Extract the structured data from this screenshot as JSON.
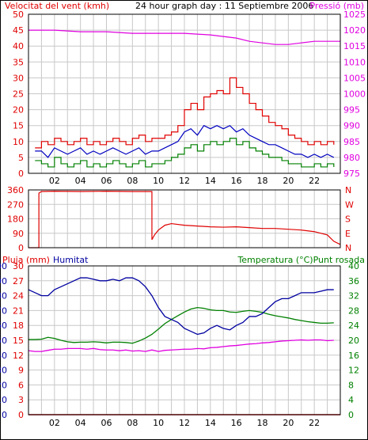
{
  "header": {
    "left_title": "Velocitat del vent (kmh)",
    "center_title": "24 hour graph day : 11 Septiembre 2006",
    "right_title": "Pressió (mb)"
  },
  "colors": {
    "wind": "#e00000",
    "gust_green": "#008000",
    "wind_avg_blue": "#0000c0",
    "pressure": "#e000e0",
    "direction": "#e00000",
    "rain": "#e00000",
    "humidity": "#0000a0",
    "temperature": "#008000",
    "dewpoint": "#e000e0",
    "grid": "#c8c8c8",
    "frame": "#000000"
  },
  "x_axis": {
    "tick_labels": [
      "02",
      "04",
      "06",
      "08",
      "10",
      "12",
      "14",
      "16",
      "18",
      "20",
      "22"
    ],
    "hours": [
      2,
      4,
      6,
      8,
      10,
      12,
      14,
      16,
      18,
      20,
      22
    ],
    "range": [
      0,
      24
    ]
  },
  "chart_data": [
    {
      "type": "line",
      "title": "24 hour graph day : 11 Septiembre 2006",
      "left_axis": {
        "label": "Velocitat del vent (kmh)",
        "ticks": [
          0,
          5,
          10,
          15,
          20,
          25,
          30,
          35,
          40,
          45,
          50
        ],
        "range": [
          0,
          50
        ]
      },
      "right_axis": {
        "label": "Pressió (mb)",
        "ticks": [
          975,
          980,
          985,
          990,
          995,
          1000,
          1005,
          1010,
          1015,
          1020,
          1025
        ],
        "range": [
          975,
          1025
        ]
      },
      "series": [
        {
          "name": "Velocitat del vent (kmh)",
          "axis": "left",
          "x": [
            0.5,
            1,
            1.5,
            2,
            2.5,
            3,
            3.5,
            4,
            4.5,
            5,
            5.5,
            6,
            6.5,
            7,
            7.5,
            8,
            8.5,
            9,
            9.5,
            10,
            10.5,
            11,
            11.5,
            12,
            12.5,
            13,
            13.5,
            14,
            14.5,
            15,
            15.5,
            16,
            16.5,
            17,
            17.5,
            18,
            18.5,
            19,
            19.5,
            20,
            20.5,
            21,
            21.5,
            22,
            22.5,
            23,
            23.5
          ],
          "values": [
            8,
            10,
            9,
            11,
            10,
            9,
            10,
            11,
            9,
            10,
            9,
            10,
            11,
            10,
            9,
            11,
            12,
            10,
            11,
            11,
            12,
            13,
            15,
            20,
            22,
            20,
            24,
            25,
            26,
            25,
            30,
            27,
            25,
            22,
            20,
            18,
            16,
            15,
            14,
            12,
            11,
            10,
            9,
            10,
            9,
            10,
            9
          ]
        },
        {
          "name": "",
          "axis": "left",
          "x": [
            0.5,
            1,
            1.5,
            2,
            2.5,
            3,
            3.5,
            4,
            4.5,
            5,
            5.5,
            6,
            6.5,
            7,
            7.5,
            8,
            8.5,
            9,
            9.5,
            10,
            10.5,
            11,
            11.5,
            12,
            12.5,
            13,
            13.5,
            14,
            14.5,
            15,
            15.5,
            16,
            16.5,
            17,
            17.5,
            18,
            18.5,
            19,
            19.5,
            20,
            20.5,
            21,
            21.5,
            22,
            22.5,
            23,
            23.5
          ],
          "values": [
            7,
            7,
            5,
            8,
            7,
            6,
            7,
            8,
            6,
            7,
            6,
            7,
            8,
            7,
            6,
            7,
            8,
            6,
            7,
            7,
            8,
            9,
            10,
            13,
            14,
            12,
            15,
            14,
            15,
            14,
            15,
            13,
            14,
            12,
            11,
            10,
            9,
            9,
            8,
            7,
            6,
            6,
            5,
            6,
            5,
            6,
            5
          ]
        },
        {
          "name": "",
          "axis": "left",
          "x": [
            0.5,
            1,
            1.5,
            2,
            2.5,
            3,
            3.5,
            4,
            4.5,
            5,
            5.5,
            6,
            6.5,
            7,
            7.5,
            8,
            8.5,
            9,
            9.5,
            10,
            10.5,
            11,
            11.5,
            12,
            12.5,
            13,
            13.5,
            14,
            14.5,
            15,
            15.5,
            16,
            16.5,
            17,
            17.5,
            18,
            18.5,
            19,
            19.5,
            20,
            20.5,
            21,
            21.5,
            22,
            22.5,
            23,
            23.5
          ],
          "values": [
            4,
            3,
            2,
            5,
            3,
            2,
            3,
            4,
            2,
            3,
            2,
            3,
            4,
            3,
            2,
            3,
            4,
            2,
            3,
            3,
            4,
            5,
            6,
            8,
            9,
            7,
            9,
            10,
            9,
            10,
            11,
            9,
            10,
            8,
            7,
            6,
            5,
            5,
            4,
            3,
            3,
            2,
            2,
            3,
            2,
            3,
            2
          ]
        },
        {
          "name": "Pressió (mb)",
          "axis": "right",
          "x": [
            0,
            2,
            4,
            6,
            8,
            10,
            12,
            14,
            16,
            17,
            18,
            19,
            20,
            21,
            22,
            23,
            24
          ],
          "values": [
            1020,
            1020,
            1019.5,
            1019.5,
            1019,
            1019,
            1019,
            1018.5,
            1017.5,
            1016.5,
            1016,
            1015.5,
            1015.5,
            1016,
            1016.5,
            1016.5,
            1016.5
          ]
        }
      ]
    },
    {
      "type": "line",
      "title": "",
      "left_axis": {
        "label": "",
        "ticks": [
          0,
          90,
          180,
          270,
          360
        ],
        "range": [
          0,
          360
        ]
      },
      "right_axis": {
        "label": "",
        "ticks": [
          "N",
          "W",
          "S",
          "E",
          "N"
        ]
      },
      "series": [
        {
          "name": "",
          "x": [
            0,
            0.8,
            0.8,
            1,
            2,
            4,
            6,
            8,
            9.5,
            9.5,
            9.7,
            10,
            10.5,
            11,
            12,
            13,
            14,
            15,
            16,
            17,
            18,
            19,
            20,
            21,
            22,
            23,
            23.5,
            24
          ],
          "values": [
            0,
            0,
            340,
            350,
            352,
            350,
            352,
            350,
            350,
            50,
            80,
            110,
            140,
            150,
            140,
            135,
            130,
            128,
            130,
            125,
            120,
            120,
            115,
            110,
            100,
            80,
            40,
            20
          ]
        }
      ]
    },
    {
      "type": "line",
      "title": "",
      "left_axis_rain": {
        "label": "Pluja (mm)",
        "ticks": [
          0,
          3,
          6,
          9,
          12,
          15,
          18,
          21,
          24,
          27,
          30
        ],
        "range": [
          0,
          30
        ]
      },
      "left_axis_hum": {
        "label": "Humitat",
        "ticks": [
          0,
          10,
          20,
          30,
          40,
          50,
          60,
          70,
          80,
          90,
          100
        ],
        "range": [
          0,
          100
        ]
      },
      "right_axis": {
        "label": "Temperatura (°C)Punt rosada",
        "ticks": [
          0,
          4,
          8,
          12,
          16,
          20,
          24,
          28,
          32,
          36,
          40
        ],
        "range": [
          0,
          40
        ]
      },
      "series": [
        {
          "name": "Pluja (mm)",
          "axis": "rain",
          "x": [
            0,
            24
          ],
          "values": [
            0,
            0
          ]
        },
        {
          "name": "Humitat",
          "axis": "hum",
          "x": [
            0,
            0.5,
            1,
            1.5,
            2,
            2.5,
            3,
            3.5,
            4,
            4.5,
            5,
            5.5,
            6,
            6.5,
            7,
            7.5,
            8,
            8.5,
            9,
            9.5,
            10,
            10.5,
            11,
            11.5,
            12,
            12.5,
            13,
            13.5,
            14,
            14.5,
            15,
            15.5,
            16,
            16.5,
            17,
            17.5,
            18,
            18.5,
            19,
            19.5,
            20,
            20.5,
            21,
            21.5,
            22,
            22.5,
            23,
            23.5
          ],
          "values": [
            84,
            82,
            80,
            80,
            84,
            86,
            88,
            90,
            92,
            92,
            91,
            90,
            90,
            91,
            90,
            92,
            92,
            90,
            86,
            80,
            72,
            66,
            64,
            62,
            58,
            56,
            54,
            55,
            58,
            60,
            58,
            57,
            60,
            62,
            66,
            66,
            68,
            72,
            76,
            78,
            78,
            80,
            82,
            82,
            82,
            83,
            84,
            84
          ]
        },
        {
          "name": "Temperatura (°C)",
          "axis": "right",
          "x": [
            0,
            0.5,
            1,
            1.5,
            2,
            2.5,
            3,
            3.5,
            4,
            4.5,
            5,
            5.5,
            6,
            6.5,
            7,
            7.5,
            8,
            8.5,
            9,
            9.5,
            10,
            10.5,
            11,
            11.5,
            12,
            12.5,
            13,
            13.5,
            14,
            14.5,
            15,
            15.5,
            16,
            16.5,
            17,
            17.5,
            18,
            18.5,
            19,
            19.5,
            20,
            20.5,
            21,
            21.5,
            22,
            22.5,
            23,
            23.5
          ],
          "values": [
            20.2,
            20.2,
            20.3,
            20.8,
            20.5,
            20.0,
            19.6,
            19.4,
            19.5,
            19.5,
            19.6,
            19.5,
            19.3,
            19.5,
            19.5,
            19.4,
            19.2,
            19.8,
            20.6,
            21.6,
            23.0,
            24.5,
            25.6,
            26.6,
            27.6,
            28.4,
            28.8,
            28.6,
            28.2,
            28.0,
            28.0,
            27.6,
            27.5,
            27.8,
            28.0,
            27.8,
            27.5,
            27.0,
            26.6,
            26.3,
            26.0,
            25.6,
            25.3,
            25.0,
            24.8,
            24.6,
            24.6,
            24.7
          ]
        },
        {
          "name": "Punt rosada",
          "axis": "right",
          "x": [
            0,
            0.5,
            1,
            1.5,
            2,
            2.5,
            3,
            3.5,
            4,
            4.5,
            5,
            5.5,
            6,
            6.5,
            7,
            7.5,
            8,
            8.5,
            9,
            9.5,
            10,
            10.5,
            11,
            11.5,
            12,
            12.5,
            13,
            13.5,
            14,
            14.5,
            15,
            15.5,
            16,
            16.5,
            17,
            17.5,
            18,
            18.5,
            19,
            19.5,
            20,
            20.5,
            21,
            21.5,
            22,
            22.5,
            23,
            23.5
          ],
          "values": [
            17.2,
            17.0,
            17.0,
            17.3,
            17.6,
            17.6,
            17.8,
            17.8,
            17.8,
            17.6,
            17.8,
            17.5,
            17.4,
            17.4,
            17.2,
            17.4,
            17.1,
            17.2,
            17.0,
            17.4,
            17.0,
            17.3,
            17.4,
            17.5,
            17.6,
            17.6,
            17.8,
            17.7,
            18.0,
            18.1,
            18.3,
            18.5,
            18.6,
            18.8,
            19.0,
            19.1,
            19.3,
            19.4,
            19.6,
            19.8,
            19.9,
            20.0,
            20.1,
            20.0,
            20.1,
            20.1,
            19.9,
            20.0
          ]
        }
      ]
    }
  ]
}
